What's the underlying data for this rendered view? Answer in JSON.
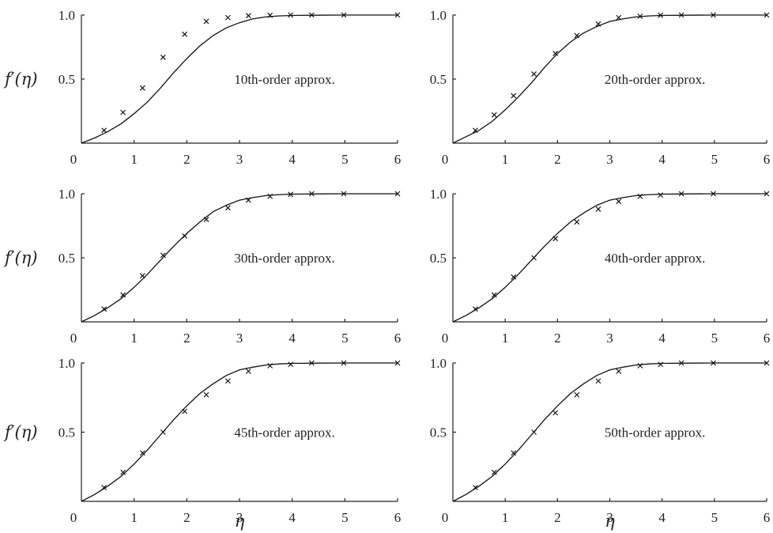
{
  "chart_data": [
    {
      "type": "line",
      "panel_label": "10th-order approx.",
      "ylabel": "f′(η)",
      "xlabel": "",
      "x_ticks": [
        "0",
        "1",
        "2",
        "3",
        "4",
        "5",
        "6"
      ],
      "y_ticks": [
        "0.5",
        "1.0"
      ],
      "xlim": [
        0,
        6
      ],
      "ylim": [
        0,
        1.0
      ],
      "series": [
        {
          "style": "line",
          "x": [
            0,
            0.25,
            0.5,
            0.75,
            1,
            1.25,
            1.5,
            1.75,
            2,
            2.25,
            2.5,
            2.75,
            3,
            3.25,
            3.5,
            3.75,
            4,
            4.5,
            5,
            5.5,
            6
          ],
          "y": [
            0,
            0.04,
            0.09,
            0.15,
            0.23,
            0.32,
            0.43,
            0.55,
            0.66,
            0.76,
            0.84,
            0.9,
            0.94,
            0.97,
            0.985,
            0.993,
            0.997,
            0.999,
            1.0,
            1.0,
            1.0
          ]
        },
        {
          "style": "markers",
          "x": [
            0.43,
            0.79,
            1.16,
            1.55,
            1.96,
            2.37,
            2.78,
            3.17,
            3.58,
            3.97,
            4.37,
            4.98,
            6.0
          ],
          "y": [
            0.1,
            0.24,
            0.43,
            0.67,
            0.85,
            0.95,
            0.98,
            0.995,
            0.998,
            1.0,
            1.0,
            1.0,
            1.0
          ]
        }
      ]
    },
    {
      "type": "line",
      "panel_label": "20th-order approx.",
      "ylabel": "",
      "xlabel": "",
      "x_ticks": [
        "0",
        "1",
        "2",
        "3",
        "4",
        "5",
        "6"
      ],
      "y_ticks": [
        "0.5",
        "1.0"
      ],
      "xlim": [
        0,
        6
      ],
      "ylim": [
        0,
        1.0
      ],
      "series": [
        {
          "style": "line",
          "x": [
            0,
            0.25,
            0.5,
            0.75,
            1,
            1.25,
            1.5,
            1.75,
            2,
            2.25,
            2.5,
            2.75,
            3,
            3.25,
            3.5,
            3.75,
            4,
            4.5,
            5,
            5.5,
            6
          ],
          "y": [
            0,
            0.05,
            0.1,
            0.17,
            0.26,
            0.36,
            0.47,
            0.59,
            0.7,
            0.79,
            0.86,
            0.91,
            0.95,
            0.97,
            0.985,
            0.993,
            0.997,
            0.999,
            1.0,
            1.0,
            1.0
          ]
        },
        {
          "style": "markers",
          "x": [
            0.43,
            0.79,
            1.16,
            1.55,
            1.96,
            2.37,
            2.78,
            3.17,
            3.58,
            3.97,
            4.37,
            4.98,
            6.0
          ],
          "y": [
            0.1,
            0.22,
            0.37,
            0.54,
            0.7,
            0.84,
            0.93,
            0.98,
            0.99,
            0.998,
            1.0,
            1.0,
            1.0
          ]
        }
      ]
    },
    {
      "type": "line",
      "panel_label": "30th-order approx.",
      "ylabel": "f′(η)",
      "xlabel": "",
      "x_ticks": [
        "0",
        "1",
        "2",
        "3",
        "4",
        "5",
        "6"
      ],
      "y_ticks": [
        "0.5",
        "1.0"
      ],
      "xlim": [
        0,
        6
      ],
      "ylim": [
        0,
        1.0
      ],
      "series": [
        {
          "style": "line",
          "x": [
            0,
            0.25,
            0.5,
            0.75,
            1,
            1.25,
            1.5,
            1.75,
            2,
            2.25,
            2.5,
            2.75,
            3,
            3.25,
            3.5,
            3.75,
            4,
            4.5,
            5,
            5.5,
            6
          ],
          "y": [
            0,
            0.05,
            0.11,
            0.18,
            0.27,
            0.37,
            0.48,
            0.59,
            0.69,
            0.78,
            0.86,
            0.91,
            0.95,
            0.97,
            0.985,
            0.993,
            0.997,
            0.999,
            1.0,
            1.0,
            1.0
          ]
        },
        {
          "style": "markers",
          "x": [
            0.43,
            0.79,
            1.16,
            1.55,
            1.96,
            2.37,
            2.78,
            3.17,
            3.58,
            3.97,
            4.37,
            4.98,
            6.0
          ],
          "y": [
            0.1,
            0.21,
            0.36,
            0.52,
            0.67,
            0.8,
            0.89,
            0.95,
            0.98,
            0.995,
            1.0,
            1.0,
            1.0
          ]
        }
      ]
    },
    {
      "type": "line",
      "panel_label": "40th-order approx.",
      "ylabel": "",
      "xlabel": "",
      "x_ticks": [
        "0",
        "1",
        "2",
        "3",
        "4",
        "5",
        "6"
      ],
      "y_ticks": [
        "0.5",
        "1.0"
      ],
      "xlim": [
        0,
        6
      ],
      "ylim": [
        0,
        1.0
      ],
      "series": [
        {
          "style": "line",
          "x": [
            0,
            0.25,
            0.5,
            0.75,
            1,
            1.25,
            1.5,
            1.75,
            2,
            2.25,
            2.5,
            2.75,
            3,
            3.25,
            3.5,
            3.75,
            4,
            4.5,
            5,
            5.5,
            6
          ],
          "y": [
            0,
            0.05,
            0.11,
            0.18,
            0.27,
            0.37,
            0.48,
            0.59,
            0.69,
            0.78,
            0.85,
            0.91,
            0.95,
            0.97,
            0.985,
            0.993,
            0.997,
            0.999,
            1.0,
            1.0,
            1.0
          ]
        },
        {
          "style": "markers",
          "x": [
            0.43,
            0.79,
            1.16,
            1.55,
            1.96,
            2.37,
            2.78,
            3.17,
            3.58,
            3.97,
            4.37,
            4.98,
            6.0
          ],
          "y": [
            0.1,
            0.21,
            0.35,
            0.5,
            0.65,
            0.78,
            0.88,
            0.94,
            0.98,
            0.99,
            1.0,
            1.0,
            1.0
          ]
        }
      ]
    },
    {
      "type": "line",
      "panel_label": "45th-order approx.",
      "ylabel": "f′(η)",
      "xlabel": "η",
      "x_ticks": [
        "0",
        "1",
        "2",
        "3",
        "4",
        "5",
        "6"
      ],
      "y_ticks": [
        "0.5",
        "1.0"
      ],
      "xlim": [
        0,
        6
      ],
      "ylim": [
        0,
        1.0
      ],
      "series": [
        {
          "style": "line",
          "x": [
            0,
            0.25,
            0.5,
            0.75,
            1,
            1.25,
            1.5,
            1.75,
            2,
            2.25,
            2.5,
            2.75,
            3,
            3.25,
            3.5,
            3.75,
            4,
            4.5,
            5,
            5.5,
            6
          ],
          "y": [
            0,
            0.05,
            0.11,
            0.18,
            0.27,
            0.37,
            0.48,
            0.59,
            0.69,
            0.78,
            0.85,
            0.91,
            0.95,
            0.97,
            0.985,
            0.993,
            0.997,
            0.999,
            1.0,
            1.0,
            1.0
          ]
        },
        {
          "style": "markers",
          "x": [
            0.43,
            0.79,
            1.16,
            1.55,
            1.96,
            2.37,
            2.78,
            3.17,
            3.58,
            3.97,
            4.37,
            4.98,
            6.0
          ],
          "y": [
            0.1,
            0.21,
            0.35,
            0.5,
            0.65,
            0.77,
            0.87,
            0.94,
            0.98,
            0.99,
            1.0,
            1.0,
            1.0
          ]
        }
      ]
    },
    {
      "type": "line",
      "panel_label": "50th-order approx.",
      "ylabel": "",
      "xlabel": "η",
      "x_ticks": [
        "0",
        "1",
        "2",
        "3",
        "4",
        "5",
        "6"
      ],
      "y_ticks": [
        "0.5",
        "1.0"
      ],
      "xlim": [
        0,
        6
      ],
      "ylim": [
        0,
        1.0
      ],
      "series": [
        {
          "style": "line",
          "x": [
            0,
            0.25,
            0.5,
            0.75,
            1,
            1.25,
            1.5,
            1.75,
            2,
            2.25,
            2.5,
            2.75,
            3,
            3.25,
            3.5,
            3.75,
            4,
            4.5,
            5,
            5.5,
            6
          ],
          "y": [
            0,
            0.05,
            0.11,
            0.18,
            0.27,
            0.37,
            0.48,
            0.59,
            0.69,
            0.78,
            0.85,
            0.91,
            0.95,
            0.97,
            0.985,
            0.993,
            0.997,
            0.999,
            1.0,
            1.0,
            1.0
          ]
        },
        {
          "style": "markers",
          "x": [
            0.43,
            0.79,
            1.16,
            1.55,
            1.96,
            2.37,
            2.78,
            3.17,
            3.58,
            3.97,
            4.37,
            4.98,
            6.0
          ],
          "y": [
            0.1,
            0.21,
            0.35,
            0.5,
            0.64,
            0.77,
            0.87,
            0.94,
            0.98,
            0.99,
            1.0,
            1.0,
            1.0
          ]
        }
      ]
    }
  ]
}
